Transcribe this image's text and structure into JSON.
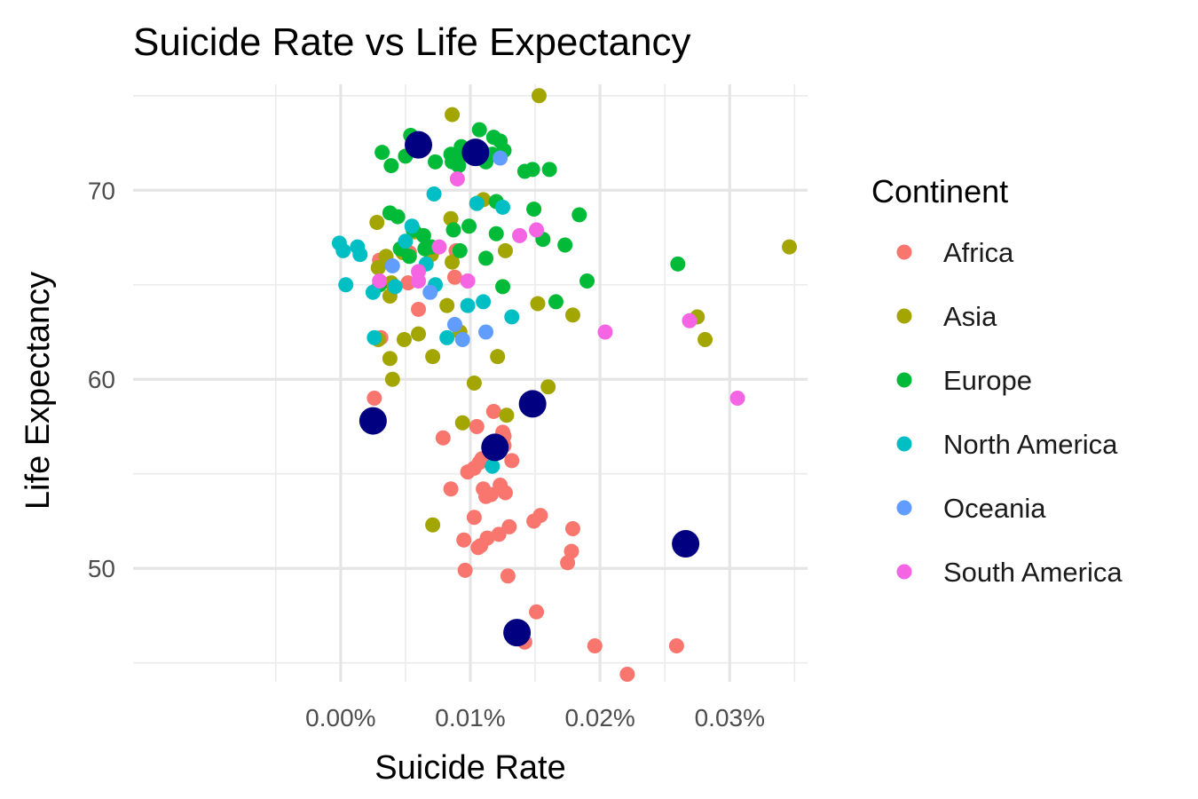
{
  "chart_data": {
    "type": "scatter",
    "title": "Suicide Rate vs Life Expectancy",
    "xlabel": "Suicide Rate",
    "ylabel": "Life Expectancy",
    "xlim": [
      -0.00016,
      0.00036
    ],
    "ylim": [
      44,
      75.6
    ],
    "x_ticks": [
      {
        "value": 0.0,
        "label": "0.00%"
      },
      {
        "value": 0.0001,
        "label": "0.01%"
      },
      {
        "value": 0.0002,
        "label": "0.02%"
      },
      {
        "value": 0.0003,
        "label": "0.03%"
      }
    ],
    "y_ticks": [
      {
        "value": 50,
        "label": "50"
      },
      {
        "value": 60,
        "label": "60"
      },
      {
        "value": 70,
        "label": "70"
      }
    ],
    "grid": true,
    "legend": {
      "title": "Continent",
      "position": "right"
    },
    "series": [
      {
        "name": "Africa",
        "color": "#F8766D",
        "points": [
          [
            2.6e-05,
            59.0
          ],
          [
            3.1e-05,
            62.2
          ],
          [
            3e-05,
            66.3
          ],
          [
            5.3e-05,
            66.7
          ],
          [
            5.2e-05,
            65.1
          ],
          [
            6e-05,
            63.7
          ],
          [
            8.8e-05,
            65.4
          ],
          [
            8.9e-05,
            66.8
          ],
          [
            7.9e-05,
            56.9
          ],
          [
            8.5e-05,
            54.2
          ],
          [
            9.5e-05,
            51.5
          ],
          [
            9.6e-05,
            49.9
          ],
          [
            9.8e-05,
            55.1
          ],
          [
            0.000103,
            55.3
          ],
          [
            0.000105,
            57.5
          ],
          [
            0.000103,
            52.7
          ],
          [
            0.000106,
            51.1
          ],
          [
            0.000108,
            51.2
          ],
          [
            0.000107,
            55.6
          ],
          [
            0.000109,
            55.8
          ],
          [
            0.00011,
            54.2
          ],
          [
            0.000112,
            53.8
          ],
          [
            0.000113,
            51.6
          ],
          [
            0.000116,
            53.9
          ],
          [
            0.000118,
            58.3
          ],
          [
            0.000122,
            51.8
          ],
          [
            0.000123,
            54.4
          ],
          [
            0.000125,
            57.2
          ],
          [
            0.000126,
            57.0
          ],
          [
            0.000126,
            56.5
          ],
          [
            0.000127,
            54.0
          ],
          [
            0.000129,
            49.6
          ],
          [
            0.00013,
            52.2
          ],
          [
            0.000132,
            55.7
          ],
          [
            0.000142,
            46.1
          ],
          [
            0.000149,
            52.5
          ],
          [
            0.000151,
            47.7
          ],
          [
            0.000154,
            52.8
          ],
          [
            0.000175,
            50.3
          ],
          [
            0.000178,
            50.9
          ],
          [
            0.000179,
            52.1
          ],
          [
            0.000196,
            45.9
          ],
          [
            0.000221,
            44.4
          ],
          [
            0.000259,
            45.9
          ]
        ]
      },
      {
        "name": "Asia",
        "color": "#A3A500",
        "points": [
          [
            2.8e-05,
            68.3
          ],
          [
            2.9e-05,
            65.9
          ],
          [
            2.9e-05,
            62.1
          ],
          [
            3.5e-05,
            66.5
          ],
          [
            3.8e-05,
            61.1
          ],
          [
            3.8e-05,
            64.4
          ],
          [
            4e-05,
            60.0
          ],
          [
            3.9e-05,
            65.1
          ],
          [
            4.8e-05,
            66.7
          ],
          [
            4.9e-05,
            62.1
          ],
          [
            5.7e-05,
            67.8
          ],
          [
            6e-05,
            62.4
          ],
          [
            7e-05,
            66.6
          ],
          [
            7.1e-05,
            61.2
          ],
          [
            7.1e-05,
            52.3
          ],
          [
            8.2e-05,
            63.9
          ],
          [
            8.5e-05,
            68.5
          ],
          [
            8.6e-05,
            66.2
          ],
          [
            8.6e-05,
            74.0
          ],
          [
            9.2e-05,
            62.5
          ],
          [
            9.4e-05,
            57.7
          ],
          [
            0.000103,
            59.8
          ],
          [
            0.00011,
            69.5
          ],
          [
            0.000121,
            61.2
          ],
          [
            0.000127,
            66.8
          ],
          [
            0.000128,
            58.1
          ],
          [
            0.000152,
            64.0
          ],
          [
            0.000153,
            75.0
          ],
          [
            0.00016,
            59.6
          ],
          [
            0.000179,
            63.4
          ],
          [
            0.000275,
            63.3
          ],
          [
            0.000281,
            62.1
          ],
          [
            0.000346,
            67.0
          ]
        ]
      },
      {
        "name": "Europe",
        "color": "#00BA38",
        "points": [
          [
            3e-05,
            65.0
          ],
          [
            3.2e-05,
            72.0
          ],
          [
            3.9e-05,
            71.3
          ],
          [
            3.8e-05,
            68.8
          ],
          [
            4.4e-05,
            68.6
          ],
          [
            4.6e-05,
            66.9
          ],
          [
            5e-05,
            71.8
          ],
          [
            5.4e-05,
            72.9
          ],
          [
            5.3e-05,
            66.5
          ],
          [
            5.6e-05,
            67.9
          ],
          [
            6.4e-05,
            67.6
          ],
          [
            6.5e-05,
            66.9
          ],
          [
            7e-05,
            67.0
          ],
          [
            7.3e-05,
            71.5
          ],
          [
            8.5e-05,
            71.9
          ],
          [
            8.6e-05,
            71.5
          ],
          [
            8.7e-05,
            67.9
          ],
          [
            9e-05,
            71.6
          ],
          [
            9.1e-05,
            71.3
          ],
          [
            9.2e-05,
            66.8
          ],
          [
            9.3e-05,
            72.3
          ],
          [
            9.9e-05,
            68.1
          ],
          [
            0.000105,
            69.3
          ],
          [
            0.000107,
            73.2
          ],
          [
            0.00011,
            72.0
          ],
          [
            0.000112,
            71.5
          ],
          [
            0.000112,
            66.4
          ],
          [
            0.000117,
            71.9
          ],
          [
            0.000118,
            72.8
          ],
          [
            0.00012,
            67.7
          ],
          [
            0.00012,
            69.4
          ],
          [
            0.000123,
            72.6
          ],
          [
            0.000125,
            64.9
          ],
          [
            0.000126,
            72.1
          ],
          [
            0.000142,
            71.0
          ],
          [
            0.000148,
            71.1
          ],
          [
            0.000149,
            69.0
          ],
          [
            0.000156,
            67.4
          ],
          [
            0.000161,
            71.1
          ],
          [
            0.000166,
            64.1
          ],
          [
            0.000173,
            67.1
          ],
          [
            0.000184,
            68.7
          ],
          [
            0.00019,
            65.2
          ],
          [
            0.00026,
            66.1
          ]
        ]
      },
      {
        "name": "North America",
        "color": "#00BFC4",
        "points": [
          [
            -1e-06,
            67.2
          ],
          [
            2e-06,
            66.8
          ],
          [
            4e-06,
            65.0
          ],
          [
            1.3e-05,
            67.0
          ],
          [
            1.5e-05,
            66.6
          ],
          [
            2.5e-05,
            64.6
          ],
          [
            2.6e-05,
            62.2
          ],
          [
            4.2e-05,
            64.9
          ],
          [
            5e-05,
            67.3
          ],
          [
            5.5e-05,
            68.1
          ],
          [
            6.6e-05,
            66.1
          ],
          [
            7.2e-05,
            69.8
          ],
          [
            7.3e-05,
            65.0
          ],
          [
            8.2e-05,
            62.2
          ],
          [
            9.8e-05,
            63.9
          ],
          [
            0.000105,
            69.3
          ],
          [
            0.00011,
            64.1
          ],
          [
            0.000117,
            55.4
          ],
          [
            0.000125,
            69.1
          ],
          [
            0.000132,
            63.3
          ]
        ]
      },
      {
        "name": "Oceania",
        "color": "#619CFF",
        "points": [
          [
            4e-05,
            66.0
          ],
          [
            6.9e-05,
            64.6
          ],
          [
            8.8e-05,
            62.9
          ],
          [
            9.4e-05,
            62.1
          ],
          [
            0.000112,
            62.5
          ],
          [
            0.000123,
            71.7
          ]
        ]
      },
      {
        "name": "South America",
        "color": "#F564E3",
        "points": [
          [
            3e-05,
            65.2
          ],
          [
            6e-05,
            65.7
          ],
          [
            6e-05,
            65.2
          ],
          [
            7.6e-05,
            67.0
          ],
          [
            9e-05,
            70.6
          ],
          [
            9.8e-05,
            65.2
          ],
          [
            0.000138,
            67.6
          ],
          [
            0.000151,
            67.9
          ],
          [
            0.000204,
            62.5
          ],
          [
            0.000269,
            63.1
          ],
          [
            0.000306,
            59.0
          ]
        ]
      }
    ],
    "highlight_points": {
      "color": "#000080",
      "points": [
        [
          2.5e-05,
          57.8
        ],
        [
          6e-05,
          72.4
        ],
        [
          0.000104,
          72.0
        ],
        [
          0.000119,
          56.4
        ],
        [
          0.000148,
          58.7
        ],
        [
          0.000136,
          46.6
        ],
        [
          0.000266,
          51.3
        ]
      ]
    }
  }
}
